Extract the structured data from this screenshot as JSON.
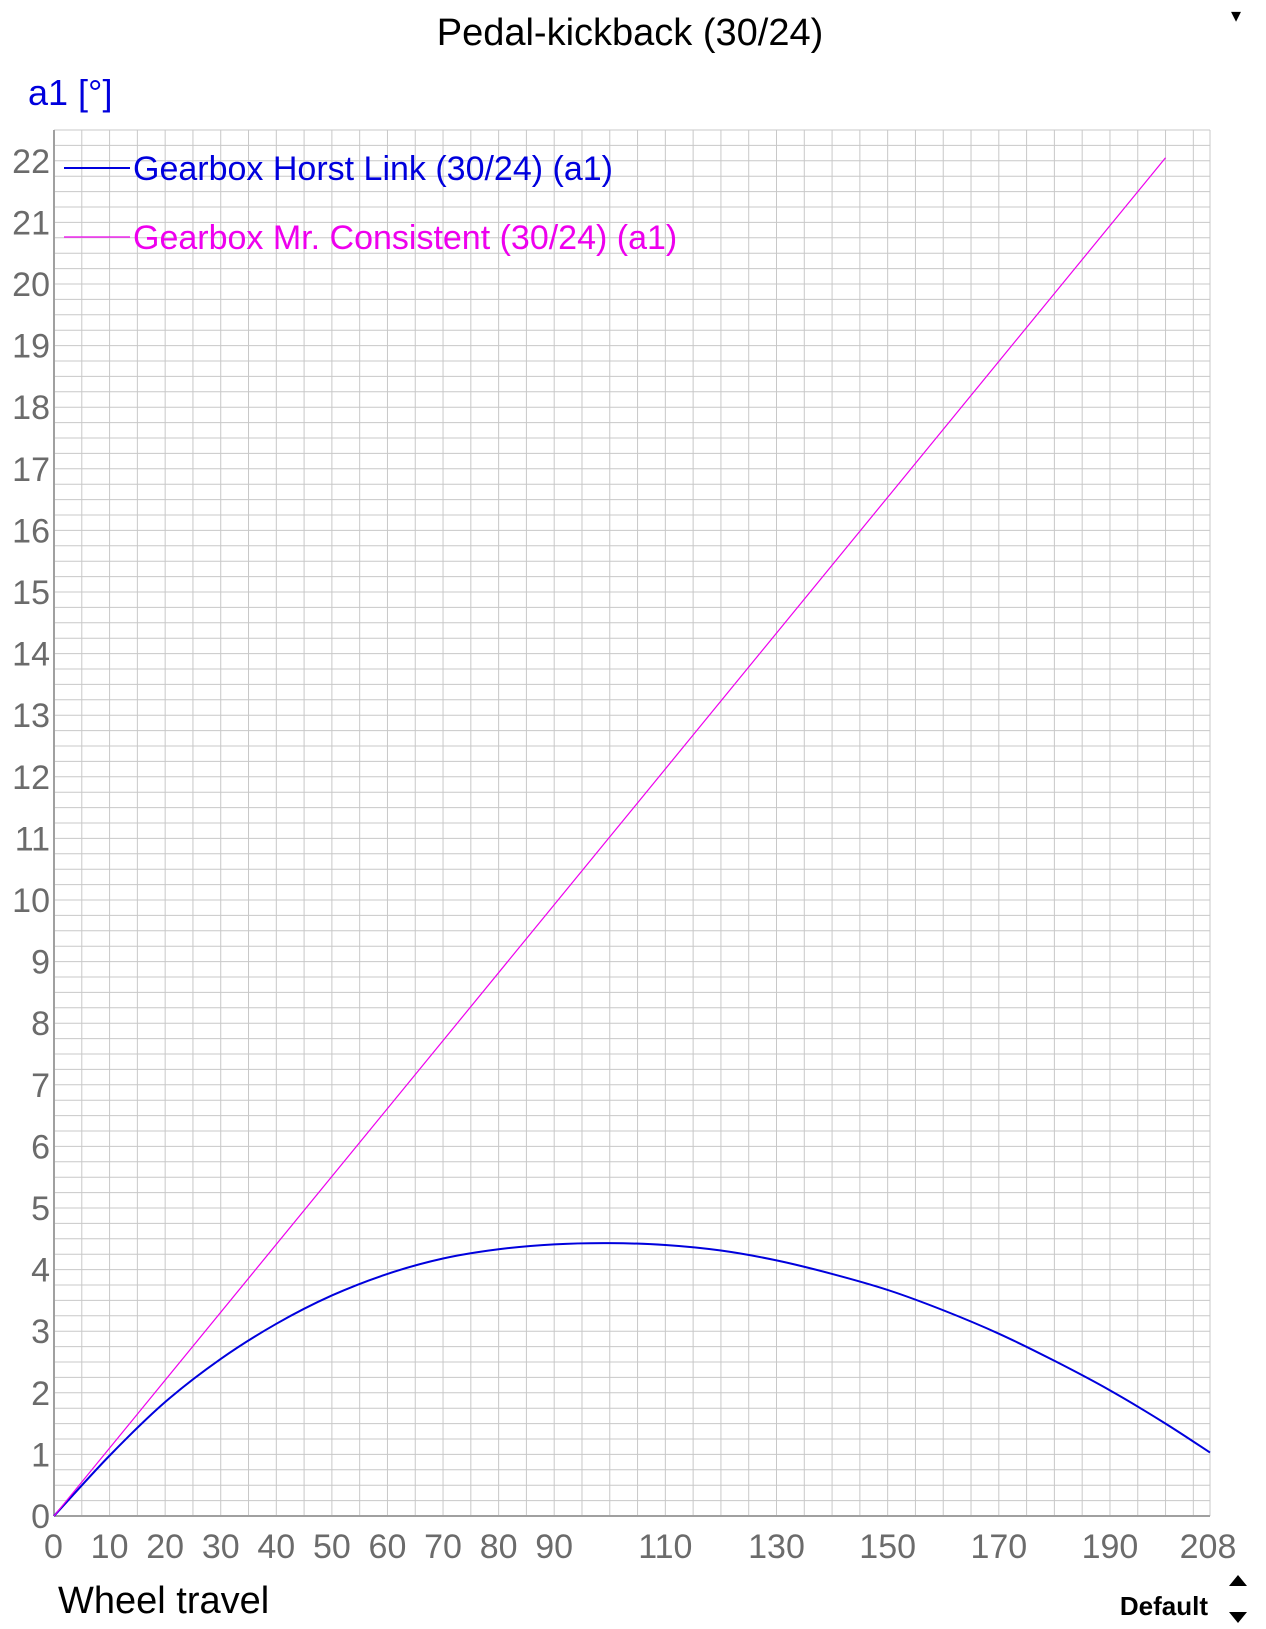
{
  "chart_data": {
    "type": "line",
    "title": "Pedal-kickback (30/24)",
    "ylabel": "a1 [°]",
    "xlabel": "Wheel travel",
    "xlim": [
      0,
      208
    ],
    "ylim": [
      0,
      22.5
    ],
    "x_ticks": [
      0,
      10,
      20,
      30,
      40,
      50,
      60,
      70,
      80,
      90,
      110,
      130,
      150,
      170,
      190,
      208
    ],
    "y_ticks": [
      0,
      1,
      2,
      3,
      4,
      5,
      6,
      7,
      8,
      9,
      10,
      11,
      12,
      13,
      14,
      15,
      16,
      17,
      18,
      19,
      20,
      21,
      22
    ],
    "grid": true,
    "legend_position": "top-left",
    "series": [
      {
        "name": "Gearbox Horst Link (30/24) (a1)",
        "color": "#0000dd",
        "x": [
          0,
          10,
          20,
          30,
          40,
          50,
          60,
          70,
          80,
          90,
          100,
          110,
          120,
          130,
          140,
          150,
          160,
          170,
          180,
          190,
          200,
          208
        ],
        "y": [
          0,
          0.98,
          1.85,
          2.55,
          3.12,
          3.58,
          3.93,
          4.18,
          4.33,
          4.41,
          4.43,
          4.4,
          4.31,
          4.15,
          3.93,
          3.67,
          3.34,
          2.96,
          2.52,
          2.04,
          1.5,
          1.03
        ]
      },
      {
        "name": "Gearbox Mr. Consistent (30/24) (a1)",
        "color": "#ee00ee",
        "x": [
          0,
          200
        ],
        "y": [
          0,
          22.05
        ]
      }
    ]
  },
  "controls": {
    "title_dropdown_icon": "caret-down-icon",
    "preset_label": "Default",
    "preset_spinner_icon": "up-down-spinner-icon"
  },
  "colors": {
    "ylabel": "#0000dd",
    "grid": "#c8c8c8",
    "axis": "#a0a0a0",
    "ticks": "#6b6b6b"
  }
}
